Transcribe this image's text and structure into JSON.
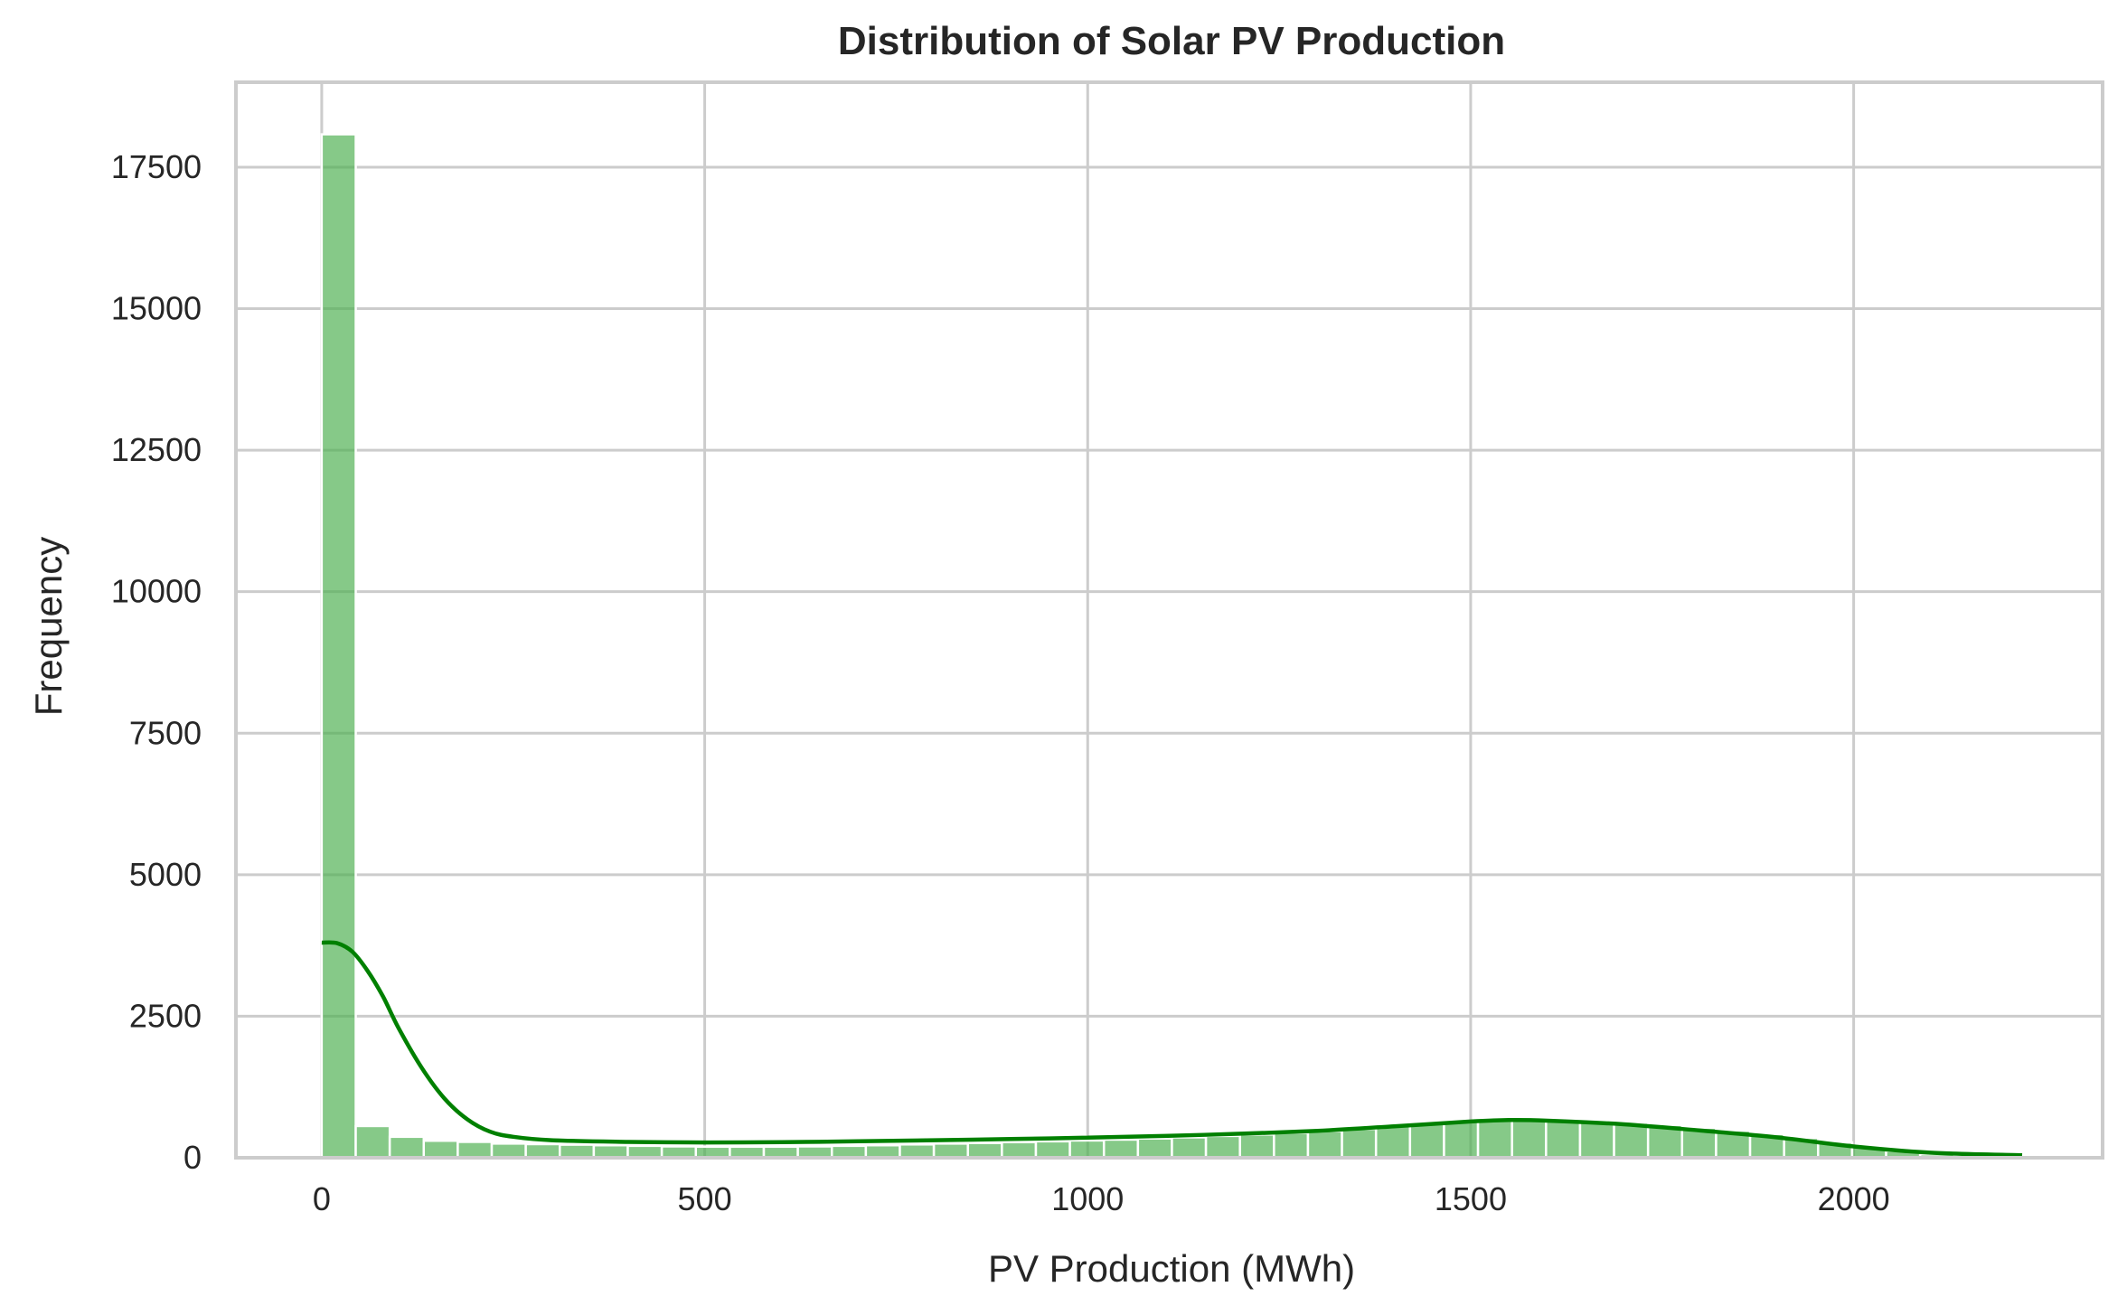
{
  "chart_data": {
    "type": "bar",
    "title": "Distribution of Solar PV Production",
    "xlabel": "PV Production (MWh)",
    "ylabel": "Frequency",
    "xlim": [
      -112,
      2325
    ],
    "ylim": [
      0,
      19000
    ],
    "xticks": [
      0,
      500,
      1000,
      1500,
      2000
    ],
    "yticks": [
      0,
      2500,
      5000,
      7500,
      10000,
      12500,
      15000,
      17500
    ],
    "grid": true,
    "legend": "none",
    "bar_color": "#4caf50",
    "kde_color": "#008000",
    "bin_edges": [
      0,
      44.4,
      88.8,
      133.2,
      177.6,
      222,
      266.4,
      310.8,
      355.2,
      399.6,
      444,
      488.4,
      532.8,
      577.2,
      621.6,
      666,
      710.4,
      754.8,
      799.2,
      843.6,
      888,
      932.4,
      976.8,
      1021.2,
      1065.6,
      1110,
      1154.4,
      1198.8,
      1243.2,
      1287.6,
      1332,
      1376.4,
      1420.8,
      1465.2,
      1509.6,
      1554,
      1598.4,
      1642.8,
      1687.2,
      1731.6,
      1776,
      1820.4,
      1864.8,
      1909.2,
      1953.6,
      1998,
      2042.4,
      2086.8,
      2131.2,
      2175.6,
      2220
    ],
    "values": [
      18080,
      560,
      370,
      300,
      280,
      250,
      240,
      230,
      220,
      210,
      200,
      195,
      195,
      195,
      200,
      210,
      220,
      235,
      250,
      260,
      275,
      290,
      305,
      320,
      340,
      360,
      385,
      410,
      440,
      470,
      510,
      560,
      610,
      650,
      680,
      680,
      670,
      650,
      620,
      580,
      530,
      480,
      420,
      350,
      270,
      190,
      120,
      60,
      25,
      10
    ],
    "kde": {
      "x": [
        0,
        20,
        40,
        60,
        80,
        100,
        130,
        160,
        190,
        220,
        250,
        300,
        400,
        500,
        600,
        700,
        800,
        900,
        1000,
        1100,
        1200,
        1300,
        1400,
        1500,
        1550,
        1600,
        1700,
        1800,
        1900,
        2000,
        2100,
        2220
      ],
      "y": [
        3800,
        3790,
        3640,
        3300,
        2850,
        2300,
        1600,
        1050,
        680,
        460,
        370,
        310,
        280,
        270,
        275,
        290,
        310,
        330,
        355,
        385,
        425,
        475,
        555,
        640,
        665,
        655,
        590,
        480,
        360,
        200,
        90,
        45
      ]
    }
  }
}
